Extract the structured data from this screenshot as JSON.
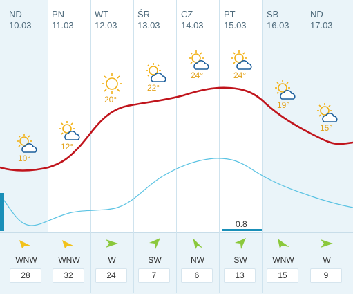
{
  "forecast": {
    "days": [
      {
        "weekday": "ND",
        "date": "10.03",
        "temp": "10°",
        "wind_dir": "WNW",
        "wind_speed": "28",
        "icon": "sun-cloud-icon"
      },
      {
        "weekday": "PN",
        "date": "11.03",
        "temp": "12°",
        "wind_dir": "WNW",
        "wind_speed": "32",
        "icon": "sun-cloud-icon"
      },
      {
        "weekday": "WT",
        "date": "12.03",
        "temp": "20°",
        "wind_dir": "W",
        "wind_speed": "24",
        "icon": "sun-icon"
      },
      {
        "weekday": "ŚR",
        "date": "13.03",
        "temp": "22°",
        "wind_dir": "SW",
        "wind_speed": "7",
        "icon": "sun-cloud-icon"
      },
      {
        "weekday": "CZ",
        "date": "14.03",
        "temp": "24°",
        "wind_dir": "NW",
        "wind_speed": "6",
        "icon": "sun-cloud-icon"
      },
      {
        "weekday": "PT",
        "date": "15.03",
        "temp": "24°",
        "wind_dir": "SW",
        "wind_speed": "13",
        "icon": "sun-cloud-icon"
      },
      {
        "weekday": "SB",
        "date": "16.03",
        "temp": "19°",
        "wind_dir": "WNW",
        "wind_speed": "15",
        "icon": "sun-cloud-icon"
      },
      {
        "weekday": "ND",
        "date": "17.03",
        "temp": "15°",
        "wind_dir": "W",
        "wind_speed": "9",
        "icon": "sun-cloud-icon"
      }
    ],
    "precip_label": "0.8",
    "colors": {
      "temp_line": "#c0141c",
      "secondary_line": "#5bc3e3",
      "temp_text": "#e3a21a",
      "wind_arrow_sw": "#8bc83c",
      "wind_arrow_wnw": "#f2c21b",
      "precip_bar": "#1a8fb8"
    }
  }
}
